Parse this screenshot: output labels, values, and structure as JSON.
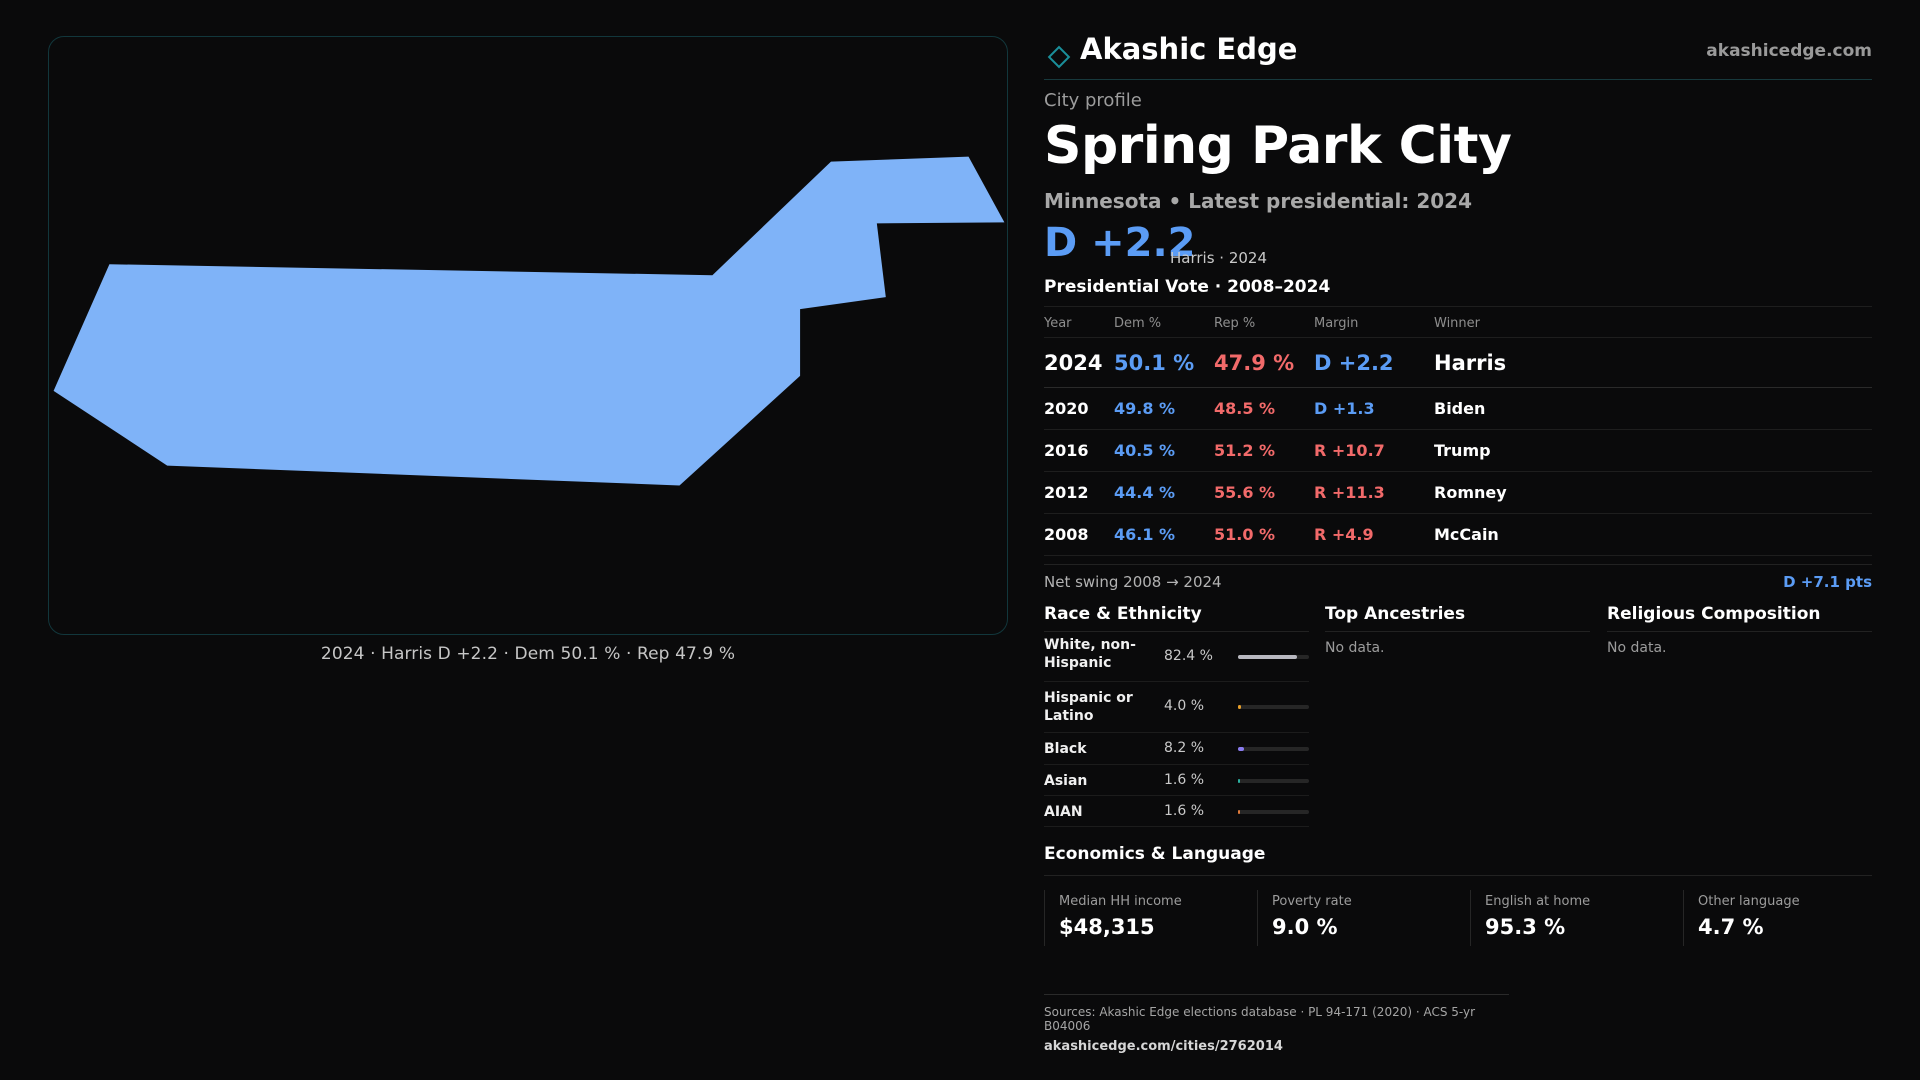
{
  "map": {
    "caption": "2024 · Harris D +2.2 · Dem 50.1 % · Rep 47.9  %",
    "fill_color": "#7fb3f8"
  },
  "brand": {
    "name": "Akashic Edge",
    "url": "akashicedge.com",
    "logo_icon": "diamond-outline-icon",
    "accent_color": "#1a8f9a"
  },
  "profile": {
    "kicker": "City profile",
    "title": "Spring Park City",
    "subtitle": "Minnesota • Latest presidential: 2024",
    "margin": "D +2.2",
    "margin_note": "Harris · 2024"
  },
  "vote_table": {
    "title": "Presidential Vote · 2008–2024",
    "headers": [
      "Year",
      "Dem %",
      "Rep %",
      "Margin",
      "Winner"
    ],
    "rows": [
      {
        "year": "2024",
        "dem": "50.1 %",
        "rep": "47.9  %",
        "margin": "D +2.2",
        "winner": "Harris"
      },
      {
        "year": "2020",
        "dem": "49.8 %",
        "rep": "48.5 %",
        "margin": "D +1.3",
        "winner": "Biden"
      },
      {
        "year": "2016",
        "dem": "40.5 %",
        "rep": "51.2 %",
        "margin": "R +10.7",
        "winner": "Trump"
      },
      {
        "year": "2012",
        "dem": "44.4 %",
        "rep": "55.6 %",
        "margin": "R +11.3",
        "winner": "Romney"
      },
      {
        "year": "2008",
        "dem": "46.1 %",
        "rep": "51.0 %",
        "margin": "R +4.9",
        "winner": "McCain"
      }
    ]
  },
  "swing": {
    "label": "Net swing 2008 → 2024",
    "value": "D +7.1 pts"
  },
  "race": {
    "title": "Race & Ethnicity",
    "rows": [
      {
        "label": "White, non-Hispanic",
        "pct": "82.4 %",
        "fraction": 0.824,
        "color": "#b8b8c0"
      },
      {
        "label": "Hispanic or Latino",
        "pct": "4.0 %",
        "fraction": 0.04,
        "color": "#e8a02a"
      },
      {
        "label": "Black",
        "pct": "8.2 %",
        "fraction": 0.082,
        "color": "#8a7cf0"
      },
      {
        "label": "Asian",
        "pct": "1.6 %",
        "fraction": 0.016,
        "color": "#2bb0a0"
      },
      {
        "label": "AIAN",
        "pct": "1.6 %",
        "fraction": 0.016,
        "color": "#e07a3a"
      }
    ]
  },
  "ancestries": {
    "title": "Top Ancestries",
    "empty": "No data."
  },
  "religion": {
    "title": "Religious Composition",
    "empty": "No data."
  },
  "economics": {
    "title": "Economics & Language",
    "cells": [
      {
        "label": "Median HH income",
        "value": "$48,315"
      },
      {
        "label": "Poverty rate",
        "value": "9.0 %"
      },
      {
        "label": "English at home",
        "value": "95.3 %"
      },
      {
        "label": "Other language",
        "value": "4.7 %"
      }
    ]
  },
  "sources": {
    "line1": "Sources: Akashic Edge elections database · PL 94-171 (2020) · ACS 5-yr B04006",
    "line2": "akashicedge.com/cities/2762014"
  }
}
